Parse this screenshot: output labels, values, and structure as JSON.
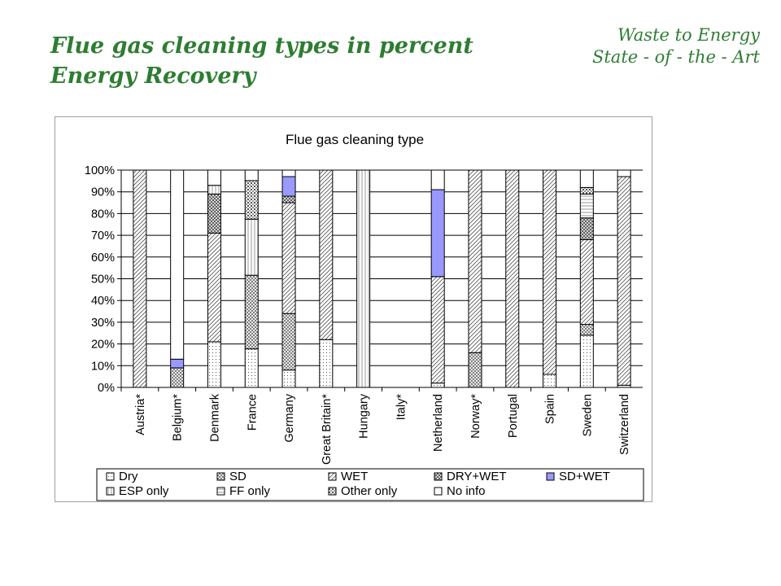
{
  "slide": {
    "title_line1": "Flue gas cleaning types in percent",
    "title_line2": "Energy Recovery",
    "corner_line1": "Waste to Energy",
    "corner_line2": "State - of - the - Art"
  },
  "colors": {
    "title_green": "#2e7d32",
    "sd_wet_fill": "#9999ff",
    "bar_outline": "#000000",
    "pattern_ink": "#555555"
  },
  "chart_data": {
    "type": "bar",
    "stacked": "percent",
    "title": "Flue gas cleaning type",
    "categories": [
      "Austria*",
      "Belgium*",
      "Denmark",
      "France",
      "Germany",
      "Great Britain*",
      "Hungary",
      "Italy*",
      "Netherland",
      "Norway*",
      "Portugal",
      "Spain",
      "Sweden",
      "Switzerland"
    ],
    "ylim": [
      0,
      100
    ],
    "yticks": [
      "0%",
      "10%",
      "20%",
      "30%",
      "40%",
      "50%",
      "60%",
      "70%",
      "80%",
      "90%",
      "100%"
    ],
    "legend_position": "bottom",
    "series": [
      {
        "name": "Dry",
        "pattern": "dots",
        "values": [
          0,
          0,
          21,
          11,
          8,
          22,
          0,
          0,
          2,
          0,
          0,
          6,
          24,
          1
        ]
      },
      {
        "name": "SD",
        "pattern": "hatch",
        "values": [
          0,
          9,
          0,
          21,
          26,
          0,
          0,
          0,
          0,
          16,
          0,
          0,
          5,
          0
        ]
      },
      {
        "name": "WET",
        "pattern": "diag",
        "values": [
          100,
          0,
          50,
          0,
          51,
          78,
          0,
          0,
          49,
          84,
          100,
          94,
          39,
          96
        ]
      },
      {
        "name": "DRY+WET",
        "pattern": "crosshatch",
        "values": [
          0,
          0,
          18,
          0,
          3,
          0,
          0,
          0,
          0,
          0,
          0,
          0,
          10,
          0
        ]
      },
      {
        "name": "SD+WET",
        "pattern": "solid",
        "values": [
          0,
          4,
          0,
          0,
          9,
          0,
          0,
          0,
          40,
          0,
          0,
          0,
          0,
          0
        ]
      },
      {
        "name": "ESP only",
        "pattern": "vlines",
        "values": [
          0,
          0,
          4,
          16,
          0,
          0,
          100,
          0,
          0,
          0,
          0,
          0,
          0,
          0
        ]
      },
      {
        "name": "FF only",
        "pattern": "hlines",
        "values": [
          0,
          0,
          0,
          0,
          0,
          0,
          0,
          0,
          0,
          0,
          0,
          0,
          11,
          0
        ]
      },
      {
        "name": "Other only",
        "pattern": "checker",
        "values": [
          0,
          0,
          0,
          11,
          0,
          0,
          0,
          0,
          0,
          0,
          0,
          0,
          3,
          0
        ]
      },
      {
        "name": "No info",
        "pattern": "none",
        "values": [
          0,
          87,
          7,
          3,
          3,
          0,
          0,
          0,
          9,
          0,
          0,
          0,
          8,
          3
        ]
      }
    ]
  }
}
